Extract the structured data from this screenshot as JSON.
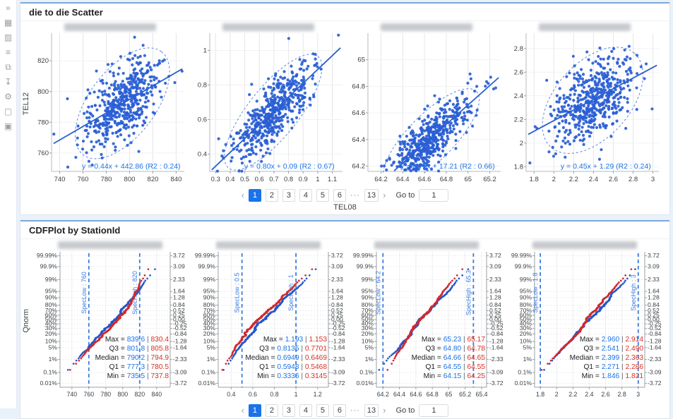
{
  "colors": {
    "page_bg": "#e9f1fa",
    "panel_top_accent": "#7fa9d9",
    "scatter_point": "#2a5fd4",
    "fit_line": "#2a5fd4",
    "ellipse": "#5b86e0",
    "equation_text": "#1a73e8",
    "cdf_blue": "#2457cc",
    "cdf_red": "#d02a2e",
    "spec_line": "#3b7ce0",
    "stat_blue": "#1a73e8",
    "stat_red": "#d93025",
    "active_page_bg": "#1a73e8",
    "icon_gray": "#9aa0a6"
  },
  "sidebar": {
    "icons": [
      {
        "name": "collapse-sidebar",
        "glyph": "»"
      },
      {
        "name": "dashboard-grid",
        "glyph": "▦"
      },
      {
        "name": "column-layout",
        "glyph": "▥"
      },
      {
        "name": "list-view",
        "glyph": "≡"
      },
      {
        "name": "copy-layout",
        "glyph": "⧉"
      },
      {
        "name": "download",
        "glyph": "↧"
      },
      {
        "name": "settings-gear",
        "glyph": "⚙"
      },
      {
        "name": "comment-bubble",
        "glyph": "▢"
      },
      {
        "name": "image-thumbnail",
        "glyph": "▣"
      }
    ]
  },
  "panel1": {
    "title": "die to die Scatter",
    "y_axis_label": "TEL12",
    "x_axis_label": "TEL08",
    "pagination": {
      "prev_icon": "‹",
      "pages": [
        "1",
        "2",
        "3",
        "4",
        "5",
        "6",
        "···",
        "13"
      ],
      "active_page": "1",
      "next_icon": "›",
      "goto_label": "Go to",
      "goto_value": "1"
    }
  },
  "panel2": {
    "title": "CDFPlot by StationId",
    "y_axis_label": "Qnorm",
    "pagination": {
      "prev_icon": "‹",
      "pages": [
        "1",
        "2",
        "3",
        "4",
        "5",
        "6",
        "···",
        "13"
      ],
      "active_page": "1",
      "next_icon": "›",
      "goto_label": "Go to",
      "goto_value": "1"
    }
  },
  "chart_data": [
    {
      "type": "scatter",
      "panel": "die to die Scatter",
      "title_redacted": true,
      "equation_label": "y = 0.44x + 442.86 (R2 : 0.24)",
      "fit": {
        "slope": 0.44,
        "intercept": 442.86,
        "r2": 0.24
      },
      "xlim": [
        733,
        847
      ],
      "ylim": [
        748,
        838
      ],
      "x_ticks": [
        740,
        760,
        780,
        800,
        820,
        840
      ],
      "y_ticks": [
        760,
        780,
        800,
        820
      ],
      "x_mean": 795,
      "x_sd": 16,
      "n_points": 500,
      "seed": 101
    },
    {
      "type": "scatter",
      "panel": "die to die Scatter",
      "title_redacted": true,
      "equation_label": "y = 0.80x + 0.09 (R2 : 0.67)",
      "fit": {
        "slope": 0.8,
        "intercept": 0.09,
        "r2": 0.67
      },
      "xlim": [
        0.26,
        1.17
      ],
      "ylim": [
        0.3,
        1.1
      ],
      "x_ticks": [
        0.3,
        0.4,
        0.5,
        0.6,
        0.7,
        0.8,
        0.9,
        1,
        1.1
      ],
      "y_ticks": [
        0.4,
        0.6,
        0.8,
        1
      ],
      "x_mean": 0.7,
      "x_sd": 0.15,
      "n_points": 500,
      "seed": 102
    },
    {
      "type": "scatter",
      "panel": "die to die Scatter",
      "title_redacted": true,
      "equation_label": "y = 0.73x + 17.21 (R2 : 0.66)",
      "fit": {
        "slope": 0.73,
        "intercept": 17.21,
        "r2": 0.66
      },
      "xlim": [
        64.08,
        65.3
      ],
      "ylim": [
        64.16,
        65.2
      ],
      "x_ticks": [
        64.2,
        64.4,
        64.6,
        64.8,
        65,
        65.2
      ],
      "y_ticks": [
        64.2,
        64.4,
        64.6,
        64.8,
        65
      ],
      "x_mean": 64.64,
      "x_sd": 0.19,
      "n_points": 500,
      "seed": 103
    },
    {
      "type": "scatter",
      "panel": "die to die Scatter",
      "title_redacted": true,
      "equation_label": "y = 0.45x + 1.29 (R2 : 0.24)",
      "fit": {
        "slope": 0.45,
        "intercept": 1.29,
        "r2": 0.24
      },
      "xlim": [
        1.72,
        3.06
      ],
      "ylim": [
        1.76,
        2.93
      ],
      "x_ticks": [
        1.8,
        2,
        2.2,
        2.4,
        2.6,
        2.8,
        3
      ],
      "y_ticks": [
        1.8,
        2,
        2.2,
        2.4,
        2.6,
        2.8
      ],
      "x_mean": 2.4,
      "x_sd": 0.2,
      "n_points": 500,
      "seed": 104
    },
    {
      "type": "cdf",
      "panel": "CDFPlot by StationId",
      "title_redacted": true,
      "xlim": [
        726,
        856
      ],
      "x_ticks": [
        740,
        760,
        780,
        800,
        820,
        840
      ],
      "percent_ticks": [
        "99.99%",
        "99.9%",
        "99%",
        "95%",
        "90%",
        "80%",
        "70%",
        "60%",
        "50%",
        "40%",
        "30%",
        "20%",
        "10%",
        "5%",
        "1%",
        "0.1%",
        "0.01%"
      ],
      "z_ticks": [
        3.72,
        3.09,
        2.33,
        1.64,
        1.28,
        0.84,
        0.52,
        0.25,
        0,
        -0.25,
        -0.52,
        -0.84,
        -1.28,
        -1.64,
        -2.33,
        -3.09,
        -3.72
      ],
      "spec_low": {
        "label": "SpecLow : 760",
        "value": 760
      },
      "spec_high": {
        "label": "SpecHigh : 820",
        "value": 820
      },
      "series": [
        {
          "name": "series-blue",
          "color_key": "cdf_blue",
          "min": 735.5,
          "q1": 777.3,
          "median": 790.2,
          "q3": 801.8,
          "max": 839.6
        },
        {
          "name": "series-red",
          "color_key": "cdf_red",
          "min": 737.8,
          "q1": 780.5,
          "median": 794.9,
          "q3": 805.8,
          "max": 830.4
        }
      ],
      "stats": [
        {
          "label": "Max = ",
          "blue": "839.6",
          "red": "830.4"
        },
        {
          "label": "Q3 = ",
          "blue": "801.8",
          "red": "805.8"
        },
        {
          "label": "Median = ",
          "blue": "790.2",
          "red": "794.9"
        },
        {
          "label": "Q1 = ",
          "blue": "777.3",
          "red": "780.5"
        },
        {
          "label": "Min = ",
          "blue": "735.5",
          "red": "737.8"
        }
      ],
      "seed": 201
    },
    {
      "type": "cdf",
      "panel": "CDFPlot by StationId",
      "title_redacted": true,
      "xlim": [
        0.28,
        1.3
      ],
      "x_ticks": [
        0.4,
        0.6,
        0.8,
        1,
        1.2
      ],
      "percent_ticks": [
        "99.99%",
        "99.9%",
        "99%",
        "95%",
        "90%",
        "80%",
        "70%",
        "60%",
        "50%",
        "40%",
        "30%",
        "20%",
        "10%",
        "5%",
        "1%",
        "0.1%",
        "0.01%"
      ],
      "z_ticks": [
        3.72,
        3.09,
        2.33,
        1.64,
        1.28,
        0.84,
        0.52,
        0.25,
        0,
        -0.25,
        -0.52,
        -0.84,
        -1.28,
        -1.64,
        -2.33,
        -3.09,
        -3.72
      ],
      "spec_low": {
        "label": "SpecLow : 0.5",
        "value": 0.5
      },
      "spec_high": {
        "label": "SpecHigh : 1",
        "value": 1
      },
      "series": [
        {
          "name": "series-blue",
          "color_key": "cdf_blue",
          "min": 0.3336,
          "q1": 0.5948,
          "median": 0.6949,
          "q3": 0.8135,
          "max": 1.193
        },
        {
          "name": "series-red",
          "color_key": "cdf_red",
          "min": 0.3145,
          "q1": 0.5468,
          "median": 0.6469,
          "q3": 0.7701,
          "max": 1.153
        }
      ],
      "stats": [
        {
          "label": "Max = ",
          "blue": "1.193",
          "red": "1.153"
        },
        {
          "label": "Q3 = ",
          "blue": "0.8135",
          "red": "0.7701"
        },
        {
          "label": "Median = ",
          "blue": "0.6949",
          "red": "0.6469"
        },
        {
          "label": "Q1 = ",
          "blue": "0.5948",
          "red": "0.5468"
        },
        {
          "label": "Min = ",
          "blue": "0.3336",
          "red": "0.3145"
        }
      ],
      "seed": 202
    },
    {
      "type": "cdf",
      "panel": "CDFPlot by StationId",
      "title_redacted": true,
      "xlim": [
        64.12,
        65.46
      ],
      "x_ticks": [
        64.2,
        64.4,
        64.6,
        64.8,
        65,
        65.2,
        65.4
      ],
      "percent_ticks": [
        "99.99%",
        "99.9%",
        "99%",
        "95%",
        "90%",
        "80%",
        "70%",
        "60%",
        "50%",
        "40%",
        "30%",
        "20%",
        "10%",
        "5%",
        "1%",
        "0.1%",
        "0.01%"
      ],
      "z_ticks": [
        3.72,
        3.09,
        2.33,
        1.64,
        1.28,
        0.84,
        0.52,
        0.25,
        0,
        -0.25,
        -0.52,
        -0.84,
        -1.28,
        -1.64,
        -2.33,
        -3.09,
        -3.72
      ],
      "spec_low": {
        "label": "SpecLow : 64.2",
        "value": 64.2
      },
      "spec_high": {
        "label": "SpecHigh : 65.3",
        "value": 65.3
      },
      "series": [
        {
          "name": "series-blue",
          "color_key": "cdf_blue",
          "min": 64.15,
          "q1": 64.55,
          "median": 64.66,
          "q3": 64.8,
          "max": 65.23
        },
        {
          "name": "series-red",
          "color_key": "cdf_red",
          "min": 64.25,
          "q1": 64.55,
          "median": 64.65,
          "q3": 64.78,
          "max": 65.17
        }
      ],
      "stats": [
        {
          "label": "Max = ",
          "blue": "65.23",
          "red": "65.17"
        },
        {
          "label": "Q3 = ",
          "blue": "64.80",
          "red": "64.78"
        },
        {
          "label": "Median = ",
          "blue": "64.66",
          "red": "64.65"
        },
        {
          "label": "Q1 = ",
          "blue": "64.55",
          "red": "64.55"
        },
        {
          "label": "Min = ",
          "blue": "64.15",
          "red": "64.25"
        }
      ],
      "seed": 203
    },
    {
      "type": "cdf",
      "panel": "CDFPlot by StationId",
      "title_redacted": true,
      "xlim": [
        1.73,
        3.08
      ],
      "x_ticks": [
        1.8,
        2,
        2.2,
        2.4,
        2.6,
        2.8,
        3
      ],
      "percent_ticks": [
        "99.99%",
        "99.9%",
        "99%",
        "95%",
        "90%",
        "80%",
        "70%",
        "60%",
        "50%",
        "40%",
        "30%",
        "20%",
        "10%",
        "5%",
        "1%",
        "0.1%",
        "0.01%"
      ],
      "z_ticks": [
        3.72,
        3.09,
        2.33,
        1.64,
        1.28,
        0.84,
        0.52,
        0.25,
        0,
        -0.25,
        -0.52,
        -0.84,
        -1.28,
        -1.64,
        -2.33,
        -3.09,
        -3.72
      ],
      "spec_low": {
        "label": "SpecLow : 1.8",
        "value": 1.8
      },
      "spec_high": {
        "label": "SpecHigh : 3",
        "value": 3
      },
      "series": [
        {
          "name": "series-blue",
          "color_key": "cdf_blue",
          "min": 1.846,
          "q1": 2.271,
          "median": 2.399,
          "q3": 2.541,
          "max": 2.96
        },
        {
          "name": "series-red",
          "color_key": "cdf_red",
          "min": 1.821,
          "q1": 2.286,
          "median": 2.363,
          "q3": 2.49,
          "max": 2.914
        }
      ],
      "stats": [
        {
          "label": "Max = ",
          "blue": "2.960",
          "red": "2.914"
        },
        {
          "label": "Q3 = ",
          "blue": "2.541",
          "red": "2.490"
        },
        {
          "label": "Median = ",
          "blue": "2.399",
          "red": "2.363"
        },
        {
          "label": "Q1 = ",
          "blue": "2.271",
          "red": "2.286"
        },
        {
          "label": "Min = ",
          "blue": "1.846",
          "red": "1.821"
        }
      ],
      "seed": 204
    }
  ]
}
